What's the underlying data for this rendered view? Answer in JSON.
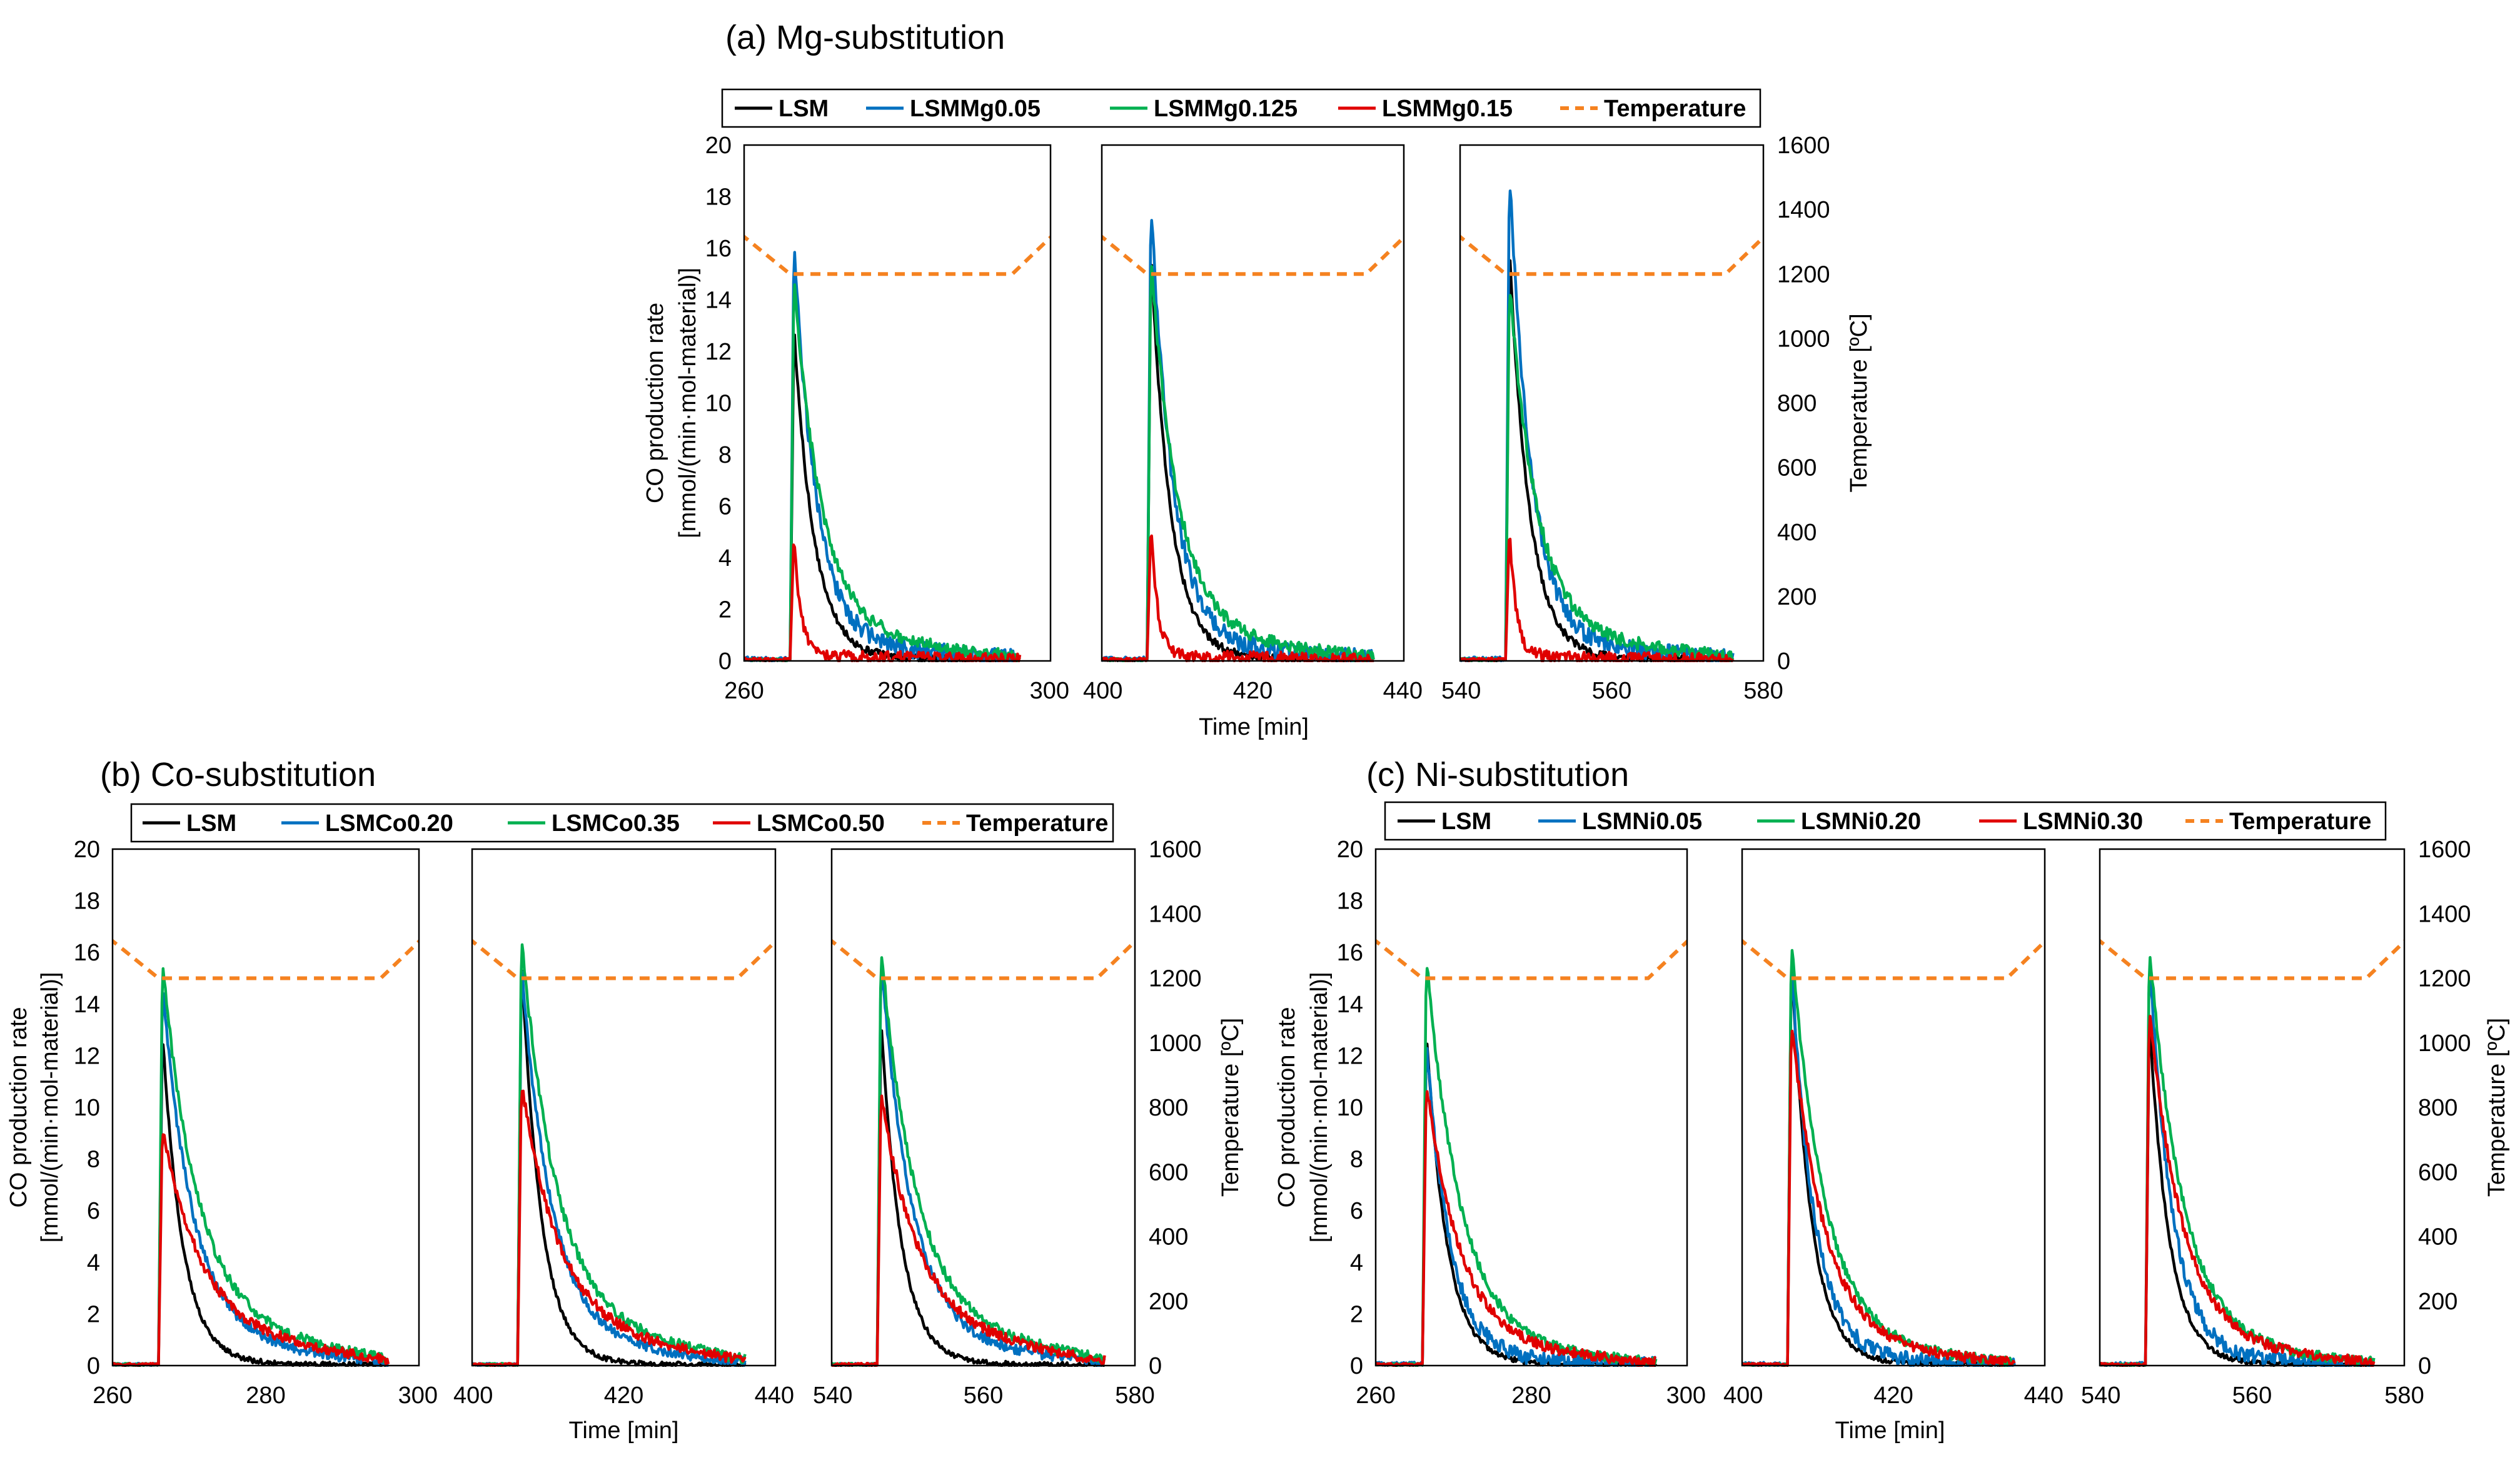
{
  "chart_data": [
    {
      "id": "mg",
      "type": "line",
      "title": "(a) Mg-substitution",
      "xlabel": "Time [min]",
      "ylabel_lines": [
        "CO production rate",
        "[mmol/(min·mol-material)]"
      ],
      "ylabel2": "Temperature [ºC]",
      "ylim": [
        0,
        20
      ],
      "yticks": [
        0,
        2,
        4,
        6,
        8,
        10,
        12,
        14,
        16,
        18,
        20
      ],
      "y2lim": [
        0,
        1600
      ],
      "y2ticks": [
        0,
        200,
        400,
        600,
        800,
        1000,
        1200,
        1400,
        1600
      ],
      "subplots": [
        {
          "xlim": [
            260,
            300
          ],
          "xticks": [
            260,
            280,
            300
          ]
        },
        {
          "xlim": [
            400,
            440
          ],
          "xticks": [
            400,
            420,
            440
          ]
        },
        {
          "xlim": [
            540,
            580
          ],
          "xticks": [
            540,
            560,
            580
          ]
        }
      ],
      "legend": [
        "LSM",
        "LSMMg0.05",
        "LSMMg0.125",
        "LSMMg0.15",
        "Temperature"
      ],
      "temperature": {
        "start": 1300,
        "plateau": 1200,
        "ramp_down_end": 6,
        "plateau_end": 35
      },
      "series": [
        {
          "name": "LSM",
          "color": "#000000",
          "peaks": [
            13.0,
            15.9,
            16.1
          ],
          "tau": 2.6,
          "tail": 0.15,
          "noise": 0.15,
          "end": 36
        },
        {
          "name": "LSMMg0.05",
          "color": "#0070c0",
          "peaks": [
            16.3,
            17.9,
            19.1
          ],
          "tau": 2.9,
          "tail": 0.7,
          "noise": 0.35,
          "end": 36
        },
        {
          "name": "LSMMg0.125",
          "color": "#00b050",
          "peaks": [
            14.9,
            15.6,
            14.8
          ],
          "tau": 3.6,
          "tail": 1.1,
          "noise": 0.25,
          "end": 36
        },
        {
          "name": "LSMMg0.15",
          "color": "#e00000",
          "peaks": [
            5.0,
            5.3,
            5.2
          ],
          "tau": 0.9,
          "tail": 0.2,
          "noise": 0.25,
          "end": 36
        }
      ]
    },
    {
      "id": "co",
      "type": "line",
      "title": "(b) Co-substitution",
      "xlabel": "Time [min]",
      "ylabel_lines": [
        "CO production rate",
        "[mmol/(min·mol-material)]"
      ],
      "ylabel2": "Temperature [ºC]",
      "ylim": [
        0,
        20
      ],
      "yticks": [
        0,
        2,
        4,
        6,
        8,
        10,
        12,
        14,
        16,
        18,
        20
      ],
      "y2lim": [
        0,
        1600
      ],
      "y2ticks": [
        0,
        200,
        400,
        600,
        800,
        1000,
        1200,
        1400,
        1600
      ],
      "subplots": [
        {
          "xlim": [
            260,
            300
          ],
          "xticks": [
            260,
            280,
            300
          ]
        },
        {
          "xlim": [
            400,
            440
          ],
          "xticks": [
            400,
            420,
            440
          ]
        },
        {
          "xlim": [
            540,
            580
          ],
          "xticks": [
            540,
            560,
            580
          ]
        }
      ],
      "legend": [
        "LSM",
        "LSMCo0.20",
        "LSMCo0.35",
        "LSMCo0.50",
        "Temperature"
      ],
      "temperature": {
        "start": 1300,
        "plateau": 1200,
        "ramp_down_end": 6,
        "plateau_end": 35
      },
      "series": [
        {
          "name": "LSM",
          "color": "#000000",
          "peaks": [
            13.0,
            15.8,
            13.5
          ],
          "tau": 2.6,
          "tail": 0.1,
          "noise": 0.1,
          "end": 36
        },
        {
          "name": "LSMCo0.20",
          "color": "#0070c0",
          "peaks": [
            14.7,
            15.5,
            15.8
          ],
          "tau": 4.0,
          "tail": 1.0,
          "noise": 0.2,
          "end": 36
        },
        {
          "name": "LSMCo0.35",
          "color": "#00b050",
          "peaks": [
            15.6,
            16.7,
            16.2
          ],
          "tau": 4.6,
          "tail": 1.7,
          "noise": 0.2,
          "end": 36
        },
        {
          "name": "LSMCo0.50",
          "color": "#e00000",
          "peaks": [
            9.3,
            11.0,
            10.5
          ],
          "tau": 5.0,
          "tail": 1.4,
          "noise": 0.2,
          "end": 36
        }
      ]
    },
    {
      "id": "ni",
      "type": "line",
      "title": "(c) Ni-substitution",
      "xlabel": "Time [min]",
      "ylabel_lines": [
        "CO production rate",
        "[mmol/(min·mol-material)]"
      ],
      "ylabel2": "Temperature [ºC]",
      "ylim": [
        0,
        20
      ],
      "yticks": [
        0,
        2,
        4,
        6,
        8,
        10,
        12,
        14,
        16,
        18,
        20
      ],
      "y2lim": [
        0,
        1600
      ],
      "y2ticks": [
        0,
        200,
        400,
        600,
        800,
        1000,
        1200,
        1400,
        1600
      ],
      "subplots": [
        {
          "xlim": [
            260,
            300
          ],
          "xticks": [
            260,
            280,
            300
          ]
        },
        {
          "xlim": [
            400,
            440
          ],
          "xticks": [
            400,
            420,
            440
          ]
        },
        {
          "xlim": [
            540,
            580
          ],
          "xticks": [
            540,
            560,
            580
          ]
        }
      ],
      "legend": [
        "LSM",
        "LSMNi0.05",
        "LSMNi0.20",
        "LSMNi0.30",
        "Temperature"
      ],
      "temperature": {
        "start": 1300,
        "plateau": 1200,
        "ramp_down_end": 6,
        "plateau_end": 35
      },
      "series": [
        {
          "name": "LSM",
          "color": "#000000",
          "peaks": [
            13.0,
            15.8,
            13.5
          ],
          "tau": 2.6,
          "tail": 0.1,
          "noise": 0.1,
          "end": 36
        },
        {
          "name": "LSMNi0.05",
          "color": "#0070c0",
          "peaks": [
            12.6,
            15.6,
            16.0
          ],
          "tau": 3.0,
          "tail": 0.3,
          "noise": 0.3,
          "end": 36
        },
        {
          "name": "LSMNi0.20",
          "color": "#00b050",
          "peaks": [
            15.9,
            16.4,
            16.3
          ],
          "tau": 4.4,
          "tail": 0.8,
          "noise": 0.2,
          "end": 36
        },
        {
          "name": "LSMNi0.30",
          "color": "#e00000",
          "peaks": [
            11.0,
            13.4,
            13.8
          ],
          "tau": 4.4,
          "tail": 0.8,
          "noise": 0.2,
          "end": 36
        }
      ]
    }
  ]
}
